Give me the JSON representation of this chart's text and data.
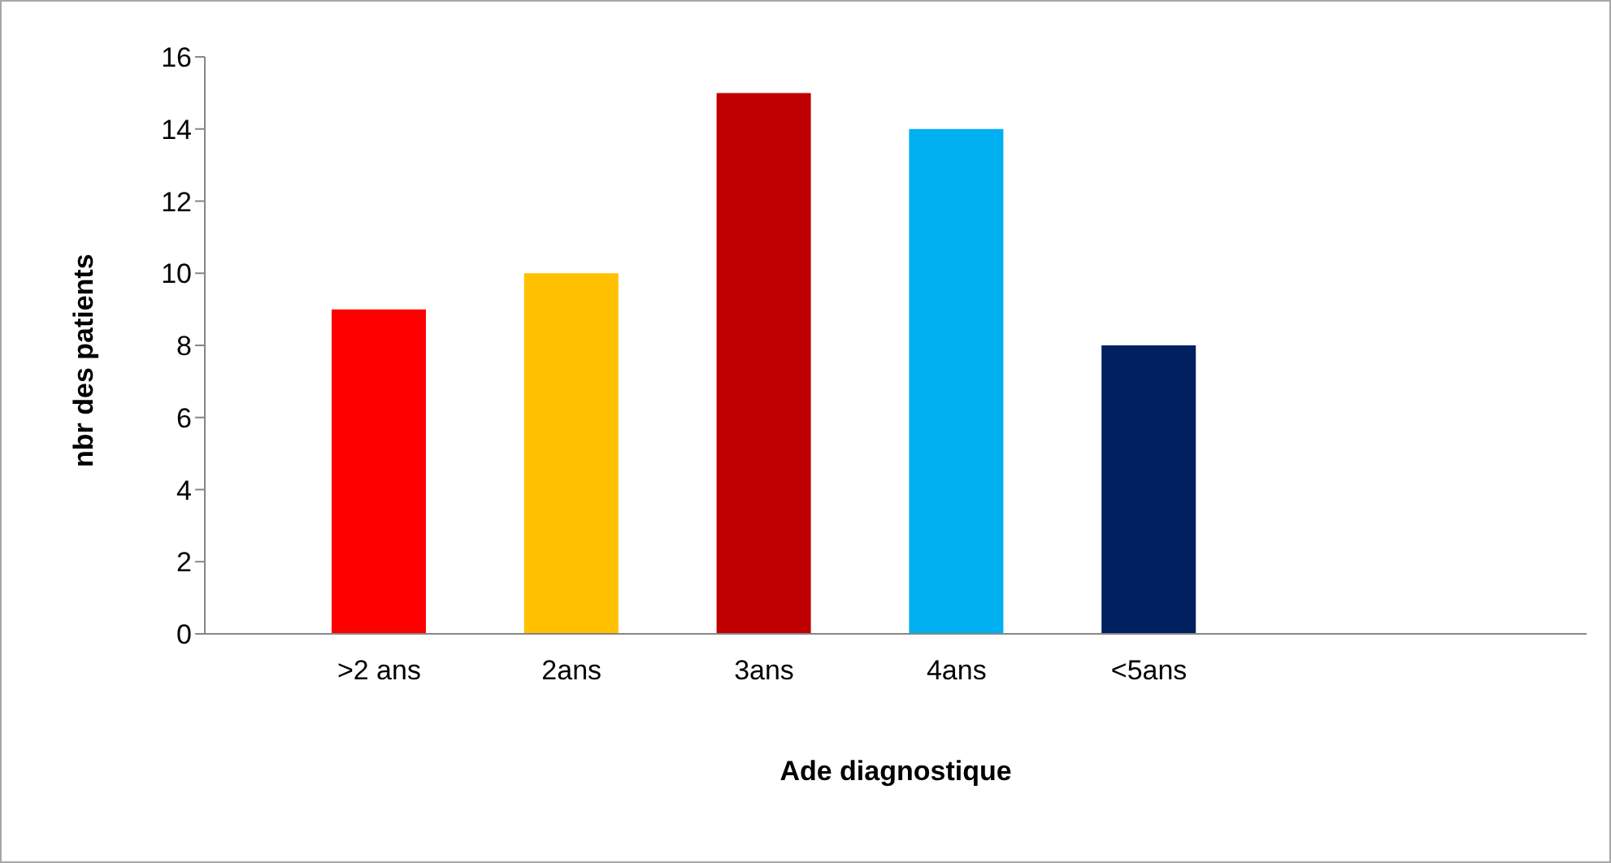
{
  "chart_data": {
    "type": "bar",
    "xlabel": "Ade diagnostique",
    "ylabel": "nbr des patients",
    "categories": [
      ">2 ans",
      "2ans",
      "3ans",
      "4ans",
      "<5ans"
    ],
    "values": [
      9,
      10,
      15,
      14,
      8
    ],
    "colors": [
      "#ff0000",
      "#ffc000",
      "#c00000",
      "#00b0f0",
      "#002060"
    ],
    "ylim": [
      0,
      16
    ],
    "yticks": [
      0,
      2,
      4,
      6,
      8,
      10,
      12,
      14,
      16
    ],
    "grid": false,
    "legend": false
  }
}
